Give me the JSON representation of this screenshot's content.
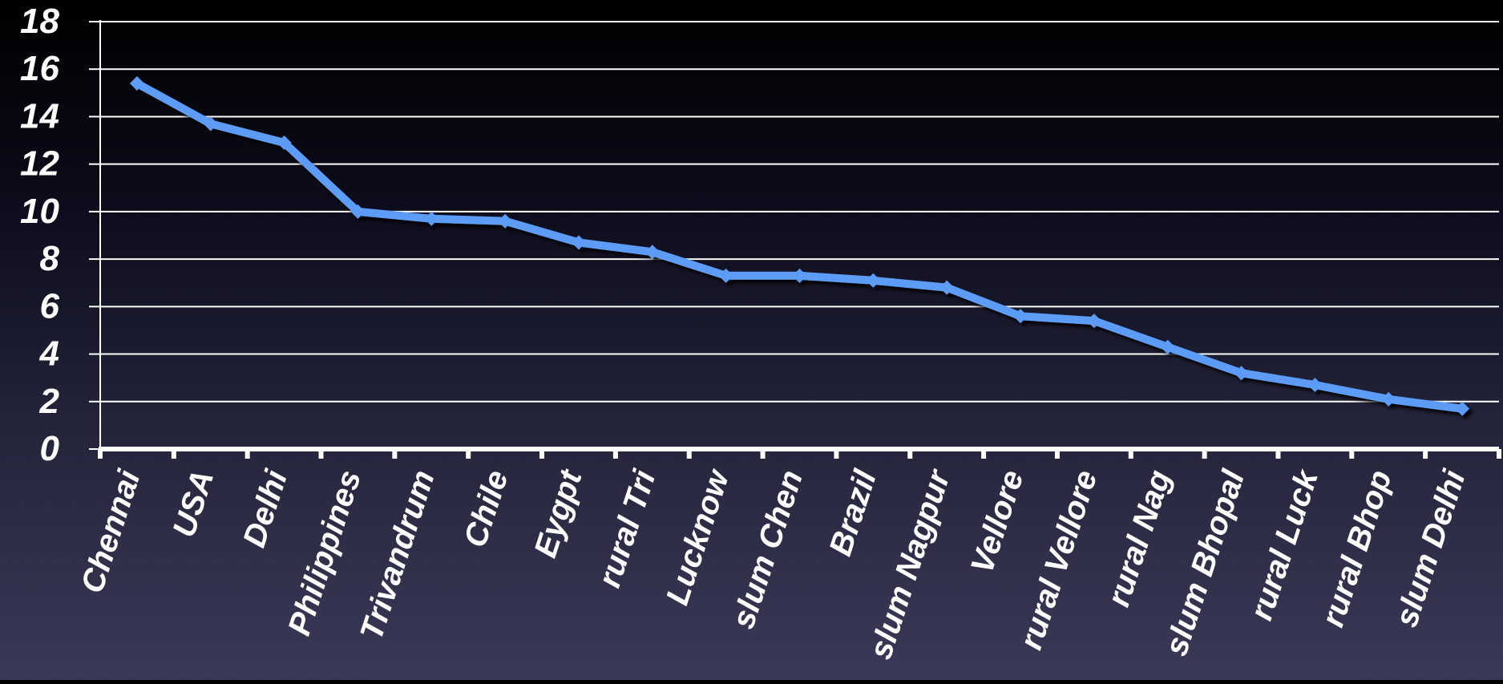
{
  "chart_data": {
    "type": "line",
    "title": "",
    "xlabel": "",
    "ylabel": "",
    "categories": [
      "Chennai",
      "USA",
      "Delhi",
      "Philippines",
      "Trivandrum",
      "Chile",
      "Eygpt",
      "rural Tri",
      "Lucknow",
      "slum Chen",
      "Brazil",
      "slum Nagpur",
      "Vellore",
      "rural Vellore",
      "rural Nag",
      "slum Bhopal",
      "rural Luck",
      "rural Bhop",
      "slum Delhi"
    ],
    "series": [
      {
        "values": [
          15.4,
          13.7,
          12.9,
          10.0,
          9.7,
          9.6,
          8.7,
          8.3,
          7.3,
          7.3,
          7.1,
          6.8,
          5.6,
          5.4,
          4.3,
          3.2,
          2.7,
          2.1,
          1.7
        ]
      }
    ],
    "ylim": [
      0,
      18
    ],
    "yticks": [
      "0",
      "2",
      "4",
      "6",
      "8",
      "10",
      "12",
      "14",
      "16",
      "18"
    ],
    "grid": true,
    "legend": "none",
    "colors": {
      "line": "#5b9cf6",
      "grid": "#ffffff",
      "axis": "#ffffff",
      "text": "#ffffff"
    }
  }
}
